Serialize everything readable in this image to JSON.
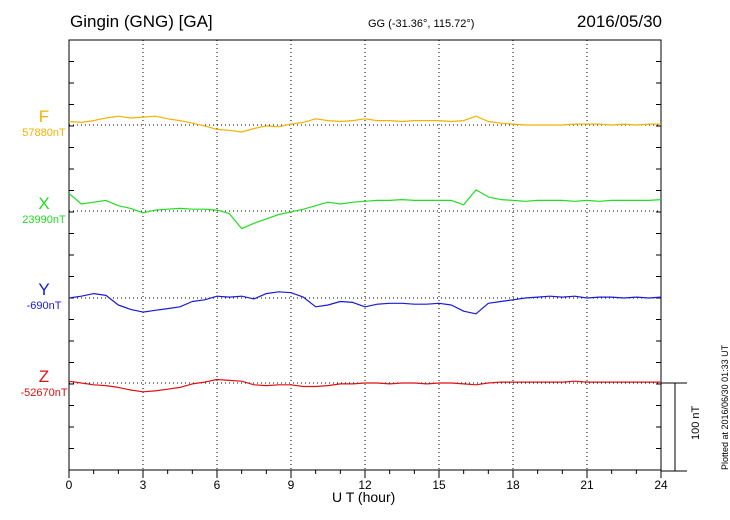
{
  "header": {
    "title": "Gingin (GNG)  [GA]",
    "coords": "GG (-31.36°, 115.72°)",
    "date": "2016/05/30"
  },
  "plotted_note": "Plotted at 2016/06/30 01:33 UT",
  "scale_label": "100 nT",
  "chart_data": {
    "type": "line",
    "xlabel": "U T (hour)",
    "xlim": [
      0,
      24
    ],
    "xticks": [
      "0",
      "3",
      "6",
      "9",
      "12",
      "15",
      "18",
      "21",
      "24"
    ],
    "grid": true,
    "scale_bar_nT": 100,
    "series": [
      {
        "name": "F",
        "baseline_label": "57880nT",
        "color": "#f2b200",
        "x": [
          0,
          0.5,
          1,
          1.5,
          2,
          2.5,
          3,
          3.5,
          4,
          4.5,
          5,
          5.5,
          6,
          6.5,
          7,
          7.5,
          8,
          8.5,
          9,
          9.5,
          10,
          10.5,
          11,
          11.5,
          12,
          12.5,
          13,
          13.5,
          14,
          14.5,
          15,
          15.5,
          16,
          16.5,
          17,
          17.5,
          18,
          18.5,
          19,
          19.5,
          20,
          20.5,
          21,
          21.5,
          22,
          22.5,
          23,
          23.5,
          24
        ],
        "y": [
          4,
          3,
          5,
          8,
          10,
          8,
          9,
          10,
          7,
          5,
          2,
          -1,
          -5,
          -6,
          -8,
          -4,
          -1,
          -2,
          1,
          3,
          7,
          5,
          4,
          5,
          7,
          5,
          5,
          4,
          5,
          5,
          5,
          4,
          5,
          10,
          4,
          2,
          1,
          0,
          0,
          0,
          0,
          1,
          1,
          1,
          0,
          1,
          0,
          1,
          1
        ]
      },
      {
        "name": "X",
        "baseline_label": "23990nT",
        "color": "#22dd22",
        "x": [
          0,
          0.5,
          1,
          1.5,
          2,
          2.5,
          3,
          3.5,
          4,
          4.5,
          5,
          5.5,
          6,
          6.5,
          7,
          7.5,
          8,
          8.5,
          9,
          9.5,
          10,
          10.5,
          11,
          11.5,
          12,
          12.5,
          13,
          13.5,
          14,
          14.5,
          15,
          15.5,
          16,
          16.5,
          17,
          17.5,
          18,
          18.5,
          19,
          19.5,
          20,
          20.5,
          21,
          21.5,
          22,
          22.5,
          23,
          23.5,
          24
        ],
        "y": [
          20,
          8,
          10,
          12,
          6,
          3,
          -2,
          1,
          2,
          3,
          2,
          2,
          1,
          -3,
          -20,
          -14,
          -9,
          -4,
          -1,
          2,
          6,
          10,
          8,
          10,
          11,
          12,
          12,
          13,
          12,
          12,
          12,
          12,
          7,
          24,
          16,
          13,
          12,
          11,
          12,
          12,
          12,
          11,
          12,
          11,
          12,
          12,
          12,
          12,
          13
        ]
      },
      {
        "name": "Y",
        "baseline_label": "-690nT",
        "color": "#1a1ad6",
        "x": [
          0,
          0.5,
          1,
          1.5,
          2,
          2.5,
          3,
          3.5,
          4,
          4.5,
          5,
          5.5,
          6,
          6.5,
          7,
          7.5,
          8,
          8.5,
          9,
          9.5,
          10,
          10.5,
          11,
          11.5,
          12,
          12.5,
          13,
          13.5,
          14,
          14.5,
          15,
          15.5,
          16,
          16.5,
          17,
          17.5,
          18,
          18.5,
          19,
          19.5,
          20,
          20.5,
          21,
          21.5,
          22,
          22.5,
          23,
          23.5,
          24
        ],
        "y": [
          0,
          2,
          5,
          3,
          -8,
          -13,
          -16,
          -14,
          -12,
          -10,
          -4,
          -2,
          2,
          1,
          2,
          -1,
          5,
          7,
          6,
          1,
          -10,
          -8,
          -4,
          -5,
          -10,
          -7,
          -6,
          -6,
          -7,
          -7,
          -6,
          -8,
          -15,
          -18,
          -6,
          -4,
          -2,
          0,
          1,
          2,
          1,
          2,
          0,
          1,
          1,
          0,
          1,
          0,
          1
        ]
      },
      {
        "name": "Z",
        "baseline_label": "-52670nT",
        "color": "#dd1111",
        "x": [
          0,
          0.5,
          1,
          1.5,
          2,
          2.5,
          3,
          3.5,
          4,
          4.5,
          5,
          5.5,
          6,
          6.5,
          7,
          7.5,
          8,
          8.5,
          9,
          9.5,
          10,
          10.5,
          11,
          11.5,
          12,
          12.5,
          13,
          13.5,
          14,
          14.5,
          15,
          15.5,
          16,
          16.5,
          17,
          17.5,
          18,
          18.5,
          19,
          19.5,
          20,
          20.5,
          21,
          21.5,
          22,
          22.5,
          23,
          23.5,
          24
        ],
        "y": [
          2,
          0,
          -2,
          -3,
          -5,
          -8,
          -10,
          -9,
          -7,
          -5,
          -1,
          1,
          4,
          3,
          2,
          -2,
          -3,
          -2,
          -2,
          -4,
          -4,
          -3,
          -1,
          -1,
          0,
          0,
          -1,
          0,
          0,
          -1,
          0,
          0,
          -1,
          -2,
          0,
          1,
          1,
          1,
          1,
          1,
          1,
          2,
          1,
          1,
          1,
          1,
          1,
          1,
          1
        ]
      }
    ]
  }
}
